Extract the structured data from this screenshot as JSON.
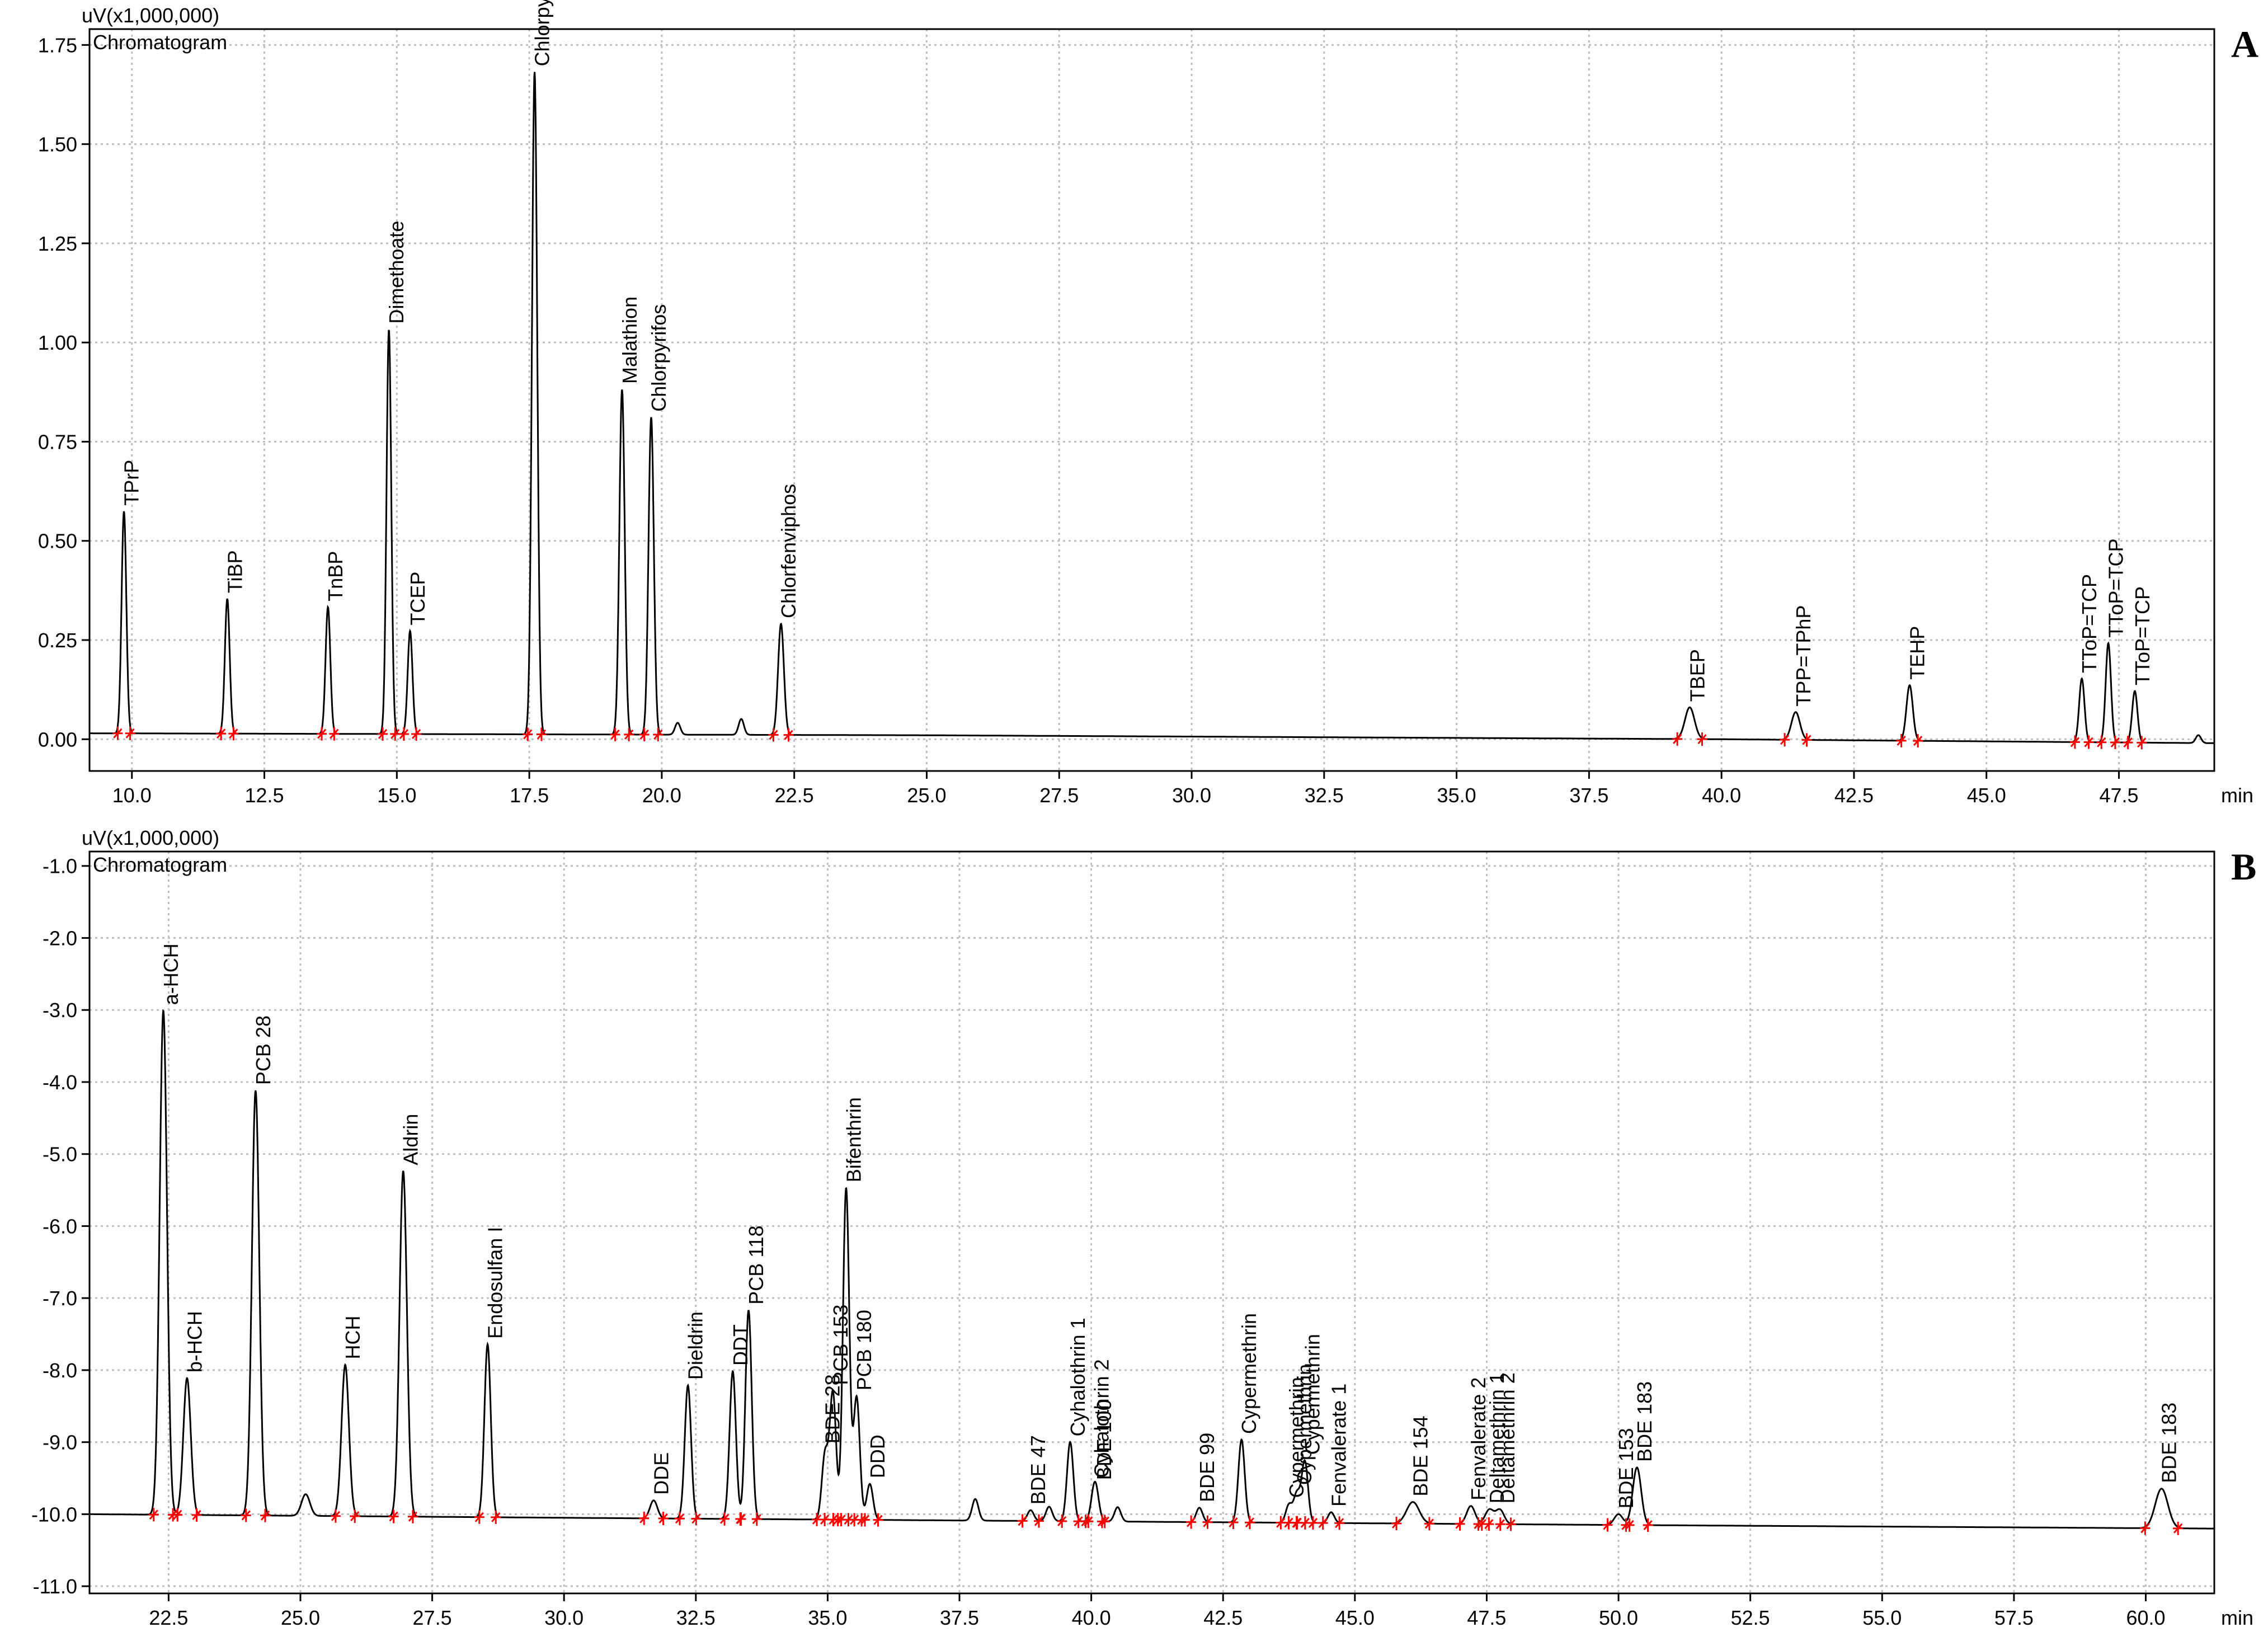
{
  "colors": {
    "trace": "#000000",
    "grid": "#bfbfbf",
    "marker": "#ff0000",
    "leader": "#0000ff"
  },
  "chart_data": [
    {
      "type": "line",
      "panel_letter": "A",
      "title": "Chromatogram",
      "ylabel": "uV(x1,000,000)",
      "xlabel": "min",
      "xlim": [
        9.2,
        49.3
      ],
      "ylim": [
        -0.08,
        1.79
      ],
      "grid": true,
      "x_ticks": [
        10.0,
        12.5,
        15.0,
        17.5,
        20.0,
        22.5,
        25.0,
        27.5,
        30.0,
        32.5,
        35.0,
        37.5,
        40.0,
        42.5,
        45.0,
        47.5
      ],
      "x_tick_labels": [
        "10.0",
        "12.5",
        "15.0",
        "17.5",
        "20.0",
        "22.5",
        "25.0",
        "27.5",
        "30.0",
        "32.5",
        "35.0",
        "37.5",
        "40.0",
        "42.5",
        "45.0",
        "47.5"
      ],
      "y_ticks": [
        0.0,
        0.25,
        0.5,
        0.75,
        1.0,
        1.25,
        1.5,
        1.75
      ],
      "y_tick_labels": [
        "0.00",
        "0.25",
        "0.50",
        "0.75",
        "1.00",
        "1.25",
        "1.50",
        "1.75"
      ],
      "baseline": [
        [
          9.2,
          0.015
        ],
        [
          25.0,
          0.01
        ],
        [
          40.0,
          0.0
        ],
        [
          49.3,
          -0.01
        ]
      ],
      "noise_peaks": [
        {
          "x": 20.3,
          "h": 0.03,
          "w": 0.05
        },
        {
          "x": 21.5,
          "h": 0.04,
          "w": 0.05
        },
        {
          "x": 49.0,
          "h": 0.02,
          "w": 0.05
        }
      ],
      "peaks": [
        {
          "x": 9.85,
          "h": 0.56,
          "w": 0.045,
          "label": "TPrP"
        },
        {
          "x": 11.8,
          "h": 0.34,
          "w": 0.045,
          "label": "TiBP"
        },
        {
          "x": 13.7,
          "h": 0.32,
          "w": 0.045,
          "label": "TnBP"
        },
        {
          "x": 14.85,
          "h": 1.02,
          "w": 0.045,
          "label": "Dimethoate"
        },
        {
          "x": 15.25,
          "h": 0.26,
          "w": 0.045,
          "label": "TCEP"
        },
        {
          "x": 17.6,
          "h": 1.67,
          "w": 0.05,
          "label": "Chlorpyrifos-methyl/Parathion-methyl"
        },
        {
          "x": 19.25,
          "h": 0.87,
          "w": 0.05,
          "label": "Malathion"
        },
        {
          "x": 19.8,
          "h": 0.8,
          "w": 0.05,
          "label": "Chlorpyrifos"
        },
        {
          "x": 22.25,
          "h": 0.28,
          "w": 0.055,
          "label": "Chlorfenviphos"
        },
        {
          "x": 39.4,
          "h": 0.08,
          "w": 0.09,
          "label": "TBEP"
        },
        {
          "x": 41.4,
          "h": 0.07,
          "w": 0.08,
          "label": "TPP=TPhP"
        },
        {
          "x": 43.55,
          "h": 0.14,
          "w": 0.06,
          "label": "TEHP"
        },
        {
          "x": 46.8,
          "h": 0.16,
          "w": 0.05,
          "label": "TToP=TCP"
        },
        {
          "x": 47.3,
          "h": 0.25,
          "w": 0.05,
          "label": "TToP=TCP"
        },
        {
          "x": 47.8,
          "h": 0.13,
          "w": 0.05,
          "label": "TToP=TCP"
        }
      ]
    },
    {
      "type": "line",
      "panel_letter": "B",
      "title": "Chromatogram",
      "ylabel": "uV(x1,000,000)",
      "xlabel": "min",
      "xlim": [
        21.0,
        61.3
      ],
      "ylim": [
        -11.1,
        -0.8
      ],
      "grid": true,
      "x_ticks": [
        22.5,
        25.0,
        27.5,
        30.0,
        32.5,
        35.0,
        37.5,
        40.0,
        42.5,
        45.0,
        47.5,
        50.0,
        52.5,
        55.0,
        57.5,
        60.0
      ],
      "x_tick_labels": [
        "22.5",
        "25.0",
        "27.5",
        "30.0",
        "32.5",
        "35.0",
        "37.5",
        "40.0",
        "42.5",
        "45.0",
        "47.5",
        "50.0",
        "52.5",
        "55.0",
        "57.5",
        "60.0"
      ],
      "y_ticks": [
        -11.0,
        -10.0,
        -9.0,
        -8.0,
        -7.0,
        -6.0,
        -5.0,
        -4.0,
        -3.0,
        -2.0,
        -1.0
      ],
      "y_tick_labels": [
        "-11.0",
        "-10.0",
        "-9.0",
        "-8.0",
        "-7.0",
        "-6.0",
        "-5.0",
        "-4.0",
        "-3.0",
        "-2.0",
        "-1.0"
      ],
      "baseline": [
        [
          21.0,
          -10.0
        ],
        [
          30.0,
          -10.05
        ],
        [
          40.0,
          -10.1
        ],
        [
          50.0,
          -10.15
        ],
        [
          61.3,
          -10.2
        ]
      ],
      "noise_peaks": [
        {
          "x": 25.1,
          "h": 0.3,
          "w": 0.08
        },
        {
          "x": 37.8,
          "h": 0.3,
          "w": 0.06
        },
        {
          "x": 39.2,
          "h": 0.2,
          "w": 0.06
        },
        {
          "x": 40.5,
          "h": 0.2,
          "w": 0.06
        }
      ],
      "peaks": [
        {
          "x": 22.4,
          "h": 7.0,
          "w": 0.07,
          "label": "a-HCH"
        },
        {
          "x": 22.85,
          "h": 1.9,
          "w": 0.07,
          "label": "b-HCH"
        },
        {
          "x": 24.15,
          "h": 5.9,
          "w": 0.07,
          "label": "PCB 28"
        },
        {
          "x": 25.85,
          "h": 2.1,
          "w": 0.07,
          "label": "HCH"
        },
        {
          "x": 26.95,
          "h": 4.8,
          "w": 0.07,
          "label": "Aldrin"
        },
        {
          "x": 28.55,
          "h": 2.4,
          "w": 0.06,
          "label": "Endosulfan I"
        },
        {
          "x": 31.7,
          "h": 0.25,
          "w": 0.07,
          "label": "DDE"
        },
        {
          "x": 32.35,
          "h": 1.85,
          "w": 0.06,
          "label": "Dieldrin"
        },
        {
          "x": 33.2,
          "h": 2.05,
          "w": 0.06,
          "label": "DDT"
        },
        {
          "x": 33.5,
          "h": 2.9,
          "w": 0.06,
          "label": "PCB 118"
        },
        {
          "x": 34.95,
          "h": 0.9,
          "w": 0.06,
          "label": "BDE 28"
        },
        {
          "x": 35.1,
          "h": 1.75,
          "w": 0.06,
          "label": "PCB 153"
        },
        {
          "x": 35.35,
          "h": 4.6,
          "w": 0.06,
          "label": "Bifenthrin"
        },
        {
          "x": 35.55,
          "h": 1.7,
          "w": 0.06,
          "label": "PCB 180"
        },
        {
          "x": 35.8,
          "h": 0.5,
          "w": 0.06,
          "label": "DDD"
        },
        {
          "x": 38.85,
          "h": 0.15,
          "w": 0.06,
          "label": "BDE 47"
        },
        {
          "x": 39.6,
          "h": 1.1,
          "w": 0.06,
          "label": "Cyhalothrin 1"
        },
        {
          "x": 40.05,
          "h": 0.35,
          "w": 0.06,
          "label": "Cyhalothrin 2"
        },
        {
          "x": 40.1,
          "h": 0.25,
          "w": 0.06,
          "label": "BDE 100"
        },
        {
          "x": 42.05,
          "h": 0.2,
          "w": 0.06,
          "label": "BDE 99"
        },
        {
          "x": 42.85,
          "h": 1.15,
          "w": 0.06,
          "label": "Cypermethrin"
        },
        {
          "x": 43.75,
          "h": 0.25,
          "w": 0.06,
          "label": "Cypermethrin"
        },
        {
          "x": 43.9,
          "h": 0.4,
          "w": 0.06,
          "label": "Cypermethrin"
        },
        {
          "x": 44.05,
          "h": 0.85,
          "w": 0.06,
          "label": "Cypermethrin"
        },
        {
          "x": 44.55,
          "h": 0.15,
          "w": 0.06,
          "label": "Fenvalerate 1"
        },
        {
          "x": 46.1,
          "h": 0.3,
          "w": 0.12,
          "label": "BDE 154"
        },
        {
          "x": 47.2,
          "h": 0.25,
          "w": 0.08,
          "label": "Fenvalerate 2"
        },
        {
          "x": 47.55,
          "h": 0.2,
          "w": 0.08,
          "label": "Deltamethrin 1"
        },
        {
          "x": 47.75,
          "h": 0.2,
          "w": 0.08,
          "label": "Deltamethrin 2"
        },
        {
          "x": 50.0,
          "h": 0.15,
          "w": 0.08,
          "label": "BDE 153"
        },
        {
          "x": 50.35,
          "h": 0.8,
          "w": 0.08,
          "label": "BDE 183"
        },
        {
          "x": 60.3,
          "h": 0.55,
          "w": 0.12,
          "label": "BDE 183"
        }
      ]
    }
  ]
}
